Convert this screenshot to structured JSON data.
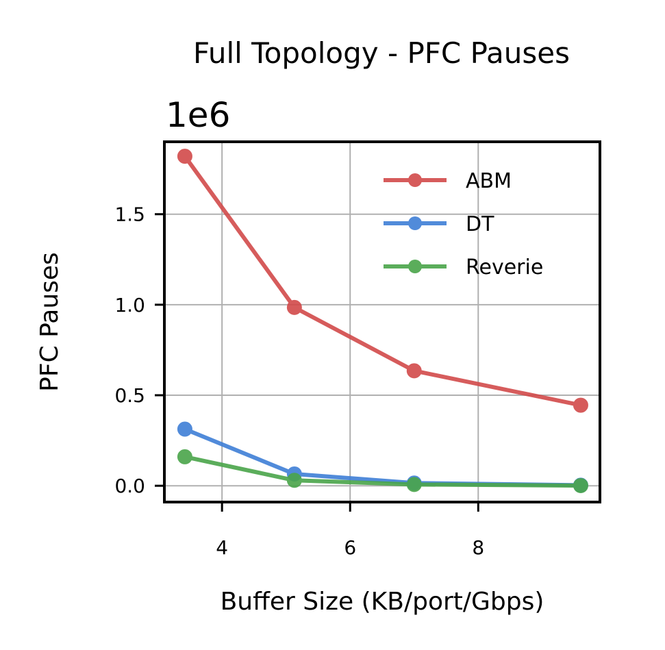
{
  "chart_data": {
    "type": "line",
    "title": "Full Topology - PFC Pauses",
    "xlabel": "Buffer Size (KB/port/Gbps)",
    "ylabel": "PFC Pauses",
    "y_offset_label": "1e6",
    "xlim": [
      3.1,
      9.9
    ],
    "ylim": [
      -0.09,
      1.9
    ],
    "x_ticks": [
      4,
      6,
      8
    ],
    "x_tick_labels": [
      "4",
      "6",
      "8"
    ],
    "y_ticks": [
      0.0,
      0.5,
      1.0,
      1.5
    ],
    "y_tick_labels": [
      "0.0",
      "0.5",
      "1.0",
      "1.5"
    ],
    "grid": true,
    "legend_position": "top-right",
    "series": [
      {
        "name": "ABM",
        "color": "#d24a4a",
        "x": [
          3.42,
          5.13,
          7.0,
          9.6
        ],
        "y": [
          1.82,
          0.985,
          0.635,
          0.445
        ]
      },
      {
        "name": "DT",
        "color": "#3f7fd6",
        "x": [
          3.42,
          5.13,
          7.0,
          9.6
        ],
        "y": [
          0.313,
          0.065,
          0.015,
          0.003
        ]
      },
      {
        "name": "Reverie",
        "color": "#4aa54a",
        "x": [
          3.42,
          5.13,
          7.0,
          9.6
        ],
        "y": [
          0.16,
          0.03,
          0.007,
          0.001
        ]
      }
    ]
  }
}
